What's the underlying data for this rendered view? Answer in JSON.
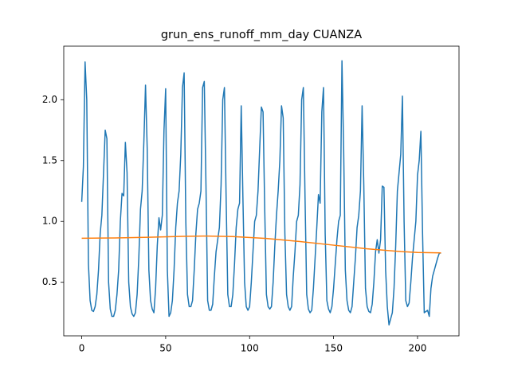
{
  "chart_data": {
    "type": "line",
    "title": "grun_ens_runoff_mm_day CUANZA",
    "x": [
      0,
      1,
      2,
      3,
      4,
      5,
      6,
      7,
      8,
      9,
      10,
      11,
      12,
      13,
      14,
      15,
      16,
      17,
      18,
      19,
      20,
      21,
      22,
      23,
      24,
      25,
      26,
      27,
      28,
      29,
      30,
      31,
      32,
      33,
      34,
      35,
      36,
      37,
      38,
      39,
      40,
      41,
      42,
      43,
      44,
      45,
      46,
      47,
      48,
      49,
      50,
      51,
      52,
      53,
      54,
      55,
      56,
      57,
      58,
      59,
      60,
      61,
      62,
      63,
      64,
      65,
      66,
      67,
      68,
      69,
      70,
      71,
      72,
      73,
      74,
      75,
      76,
      77,
      78,
      79,
      80,
      81,
      82,
      83,
      84,
      85,
      86,
      87,
      88,
      89,
      90,
      91,
      92,
      93,
      94,
      95,
      96,
      97,
      98,
      99,
      100,
      101,
      102,
      103,
      104,
      105,
      106,
      107,
      108,
      109,
      110,
      111,
      112,
      113,
      114,
      115,
      116,
      117,
      118,
      119,
      120,
      121,
      122,
      123,
      124,
      125,
      126,
      127,
      128,
      129,
      130,
      131,
      132,
      133,
      134,
      135,
      136,
      137,
      138,
      139,
      140,
      141,
      142,
      143,
      144,
      145,
      146,
      147,
      148,
      149,
      150,
      151,
      152,
      153,
      154,
      155,
      156,
      157,
      158,
      159,
      160,
      161,
      162,
      163,
      164,
      165,
      166,
      167,
      168,
      169,
      170,
      171,
      172,
      173,
      174,
      175,
      176,
      177,
      178,
      179,
      180,
      181,
      182,
      183,
      184,
      185,
      186,
      187,
      188,
      189,
      190,
      191,
      192,
      193,
      194,
      195,
      196,
      197,
      198,
      199,
      200,
      201,
      202,
      203,
      204,
      205,
      206,
      207,
      208,
      209,
      210,
      211,
      212,
      213,
      214
    ],
    "series": [
      {
        "color": "#1f77b4",
        "values": [
          1.16,
          1.45,
          2.31,
          2.0,
          0.65,
          0.35,
          0.27,
          0.26,
          0.3,
          0.4,
          0.6,
          0.9,
          1.05,
          1.4,
          1.75,
          1.68,
          0.5,
          0.28,
          0.22,
          0.22,
          0.27,
          0.4,
          0.6,
          1.0,
          1.23,
          1.21,
          1.65,
          1.4,
          0.5,
          0.3,
          0.24,
          0.22,
          0.25,
          0.4,
          0.7,
          1.1,
          1.25,
          1.65,
          2.12,
          1.6,
          0.6,
          0.35,
          0.28,
          0.25,
          0.45,
          0.8,
          1.03,
          0.93,
          1.05,
          1.75,
          2.09,
          0.6,
          0.22,
          0.25,
          0.35,
          0.6,
          0.95,
          1.15,
          1.25,
          1.55,
          2.1,
          2.22,
          1.0,
          0.4,
          0.3,
          0.3,
          0.35,
          0.6,
          0.9,
          1.1,
          1.15,
          1.25,
          2.1,
          2.15,
          1.3,
          0.35,
          0.27,
          0.27,
          0.32,
          0.55,
          0.75,
          0.85,
          0.95,
          1.3,
          2.0,
          2.1,
          1.2,
          0.4,
          0.3,
          0.3,
          0.4,
          0.65,
          0.95,
          1.1,
          1.15,
          1.95,
          1.2,
          0.5,
          0.3,
          0.27,
          0.3,
          0.5,
          0.75,
          1.0,
          1.05,
          1.25,
          1.6,
          1.94,
          1.9,
          1.1,
          0.4,
          0.3,
          0.28,
          0.3,
          0.5,
          0.8,
          1.05,
          1.25,
          1.5,
          1.95,
          1.85,
          0.9,
          0.4,
          0.3,
          0.27,
          0.3,
          0.55,
          0.75,
          1.0,
          1.05,
          1.3,
          2.0,
          2.1,
          1.2,
          0.4,
          0.28,
          0.25,
          0.27,
          0.45,
          0.7,
          0.95,
          1.22,
          1.15,
          1.9,
          2.1,
          0.9,
          0.35,
          0.28,
          0.25,
          0.3,
          0.45,
          0.65,
          0.85,
          1.0,
          1.05,
          2.32,
          1.6,
          0.6,
          0.35,
          0.27,
          0.25,
          0.3,
          0.5,
          0.7,
          0.95,
          1.05,
          1.25,
          1.95,
          1.3,
          0.45,
          0.3,
          0.26,
          0.25,
          0.32,
          0.5,
          0.75,
          0.85,
          0.74,
          0.85,
          1.29,
          1.28,
          0.6,
          0.3,
          0.15,
          0.2,
          0.25,
          0.45,
          0.8,
          1.25,
          1.4,
          1.55,
          2.03,
          1.0,
          0.35,
          0.3,
          0.33,
          0.5,
          0.7,
          0.85,
          1.0,
          1.38,
          1.5,
          1.74,
          0.9,
          0.25,
          0.26,
          0.27,
          0.22,
          0.45,
          0.55,
          0.6,
          0.65,
          0.7,
          0.74,
          0.74
        ]
      },
      {
        "color": "#ff7f0e",
        "x": [
          0,
          20,
          40,
          60,
          75,
          90,
          110,
          130,
          150,
          170,
          190,
          200,
          214
        ],
        "values": [
          0.862,
          0.864,
          0.87,
          0.877,
          0.88,
          0.876,
          0.86,
          0.835,
          0.805,
          0.775,
          0.752,
          0.745,
          0.742
        ]
      }
    ],
    "xlim": [
      -10.7,
      224.7
    ],
    "ylim": [
      0.06,
      2.44
    ],
    "xticks": [
      0,
      50,
      100,
      150,
      200
    ],
    "yticks": [
      0.5,
      {
        "value": 1.0,
        "label": "1.0"
      },
      1.5,
      {
        "value": 2.0,
        "label": "2.0"
      }
    ]
  }
}
